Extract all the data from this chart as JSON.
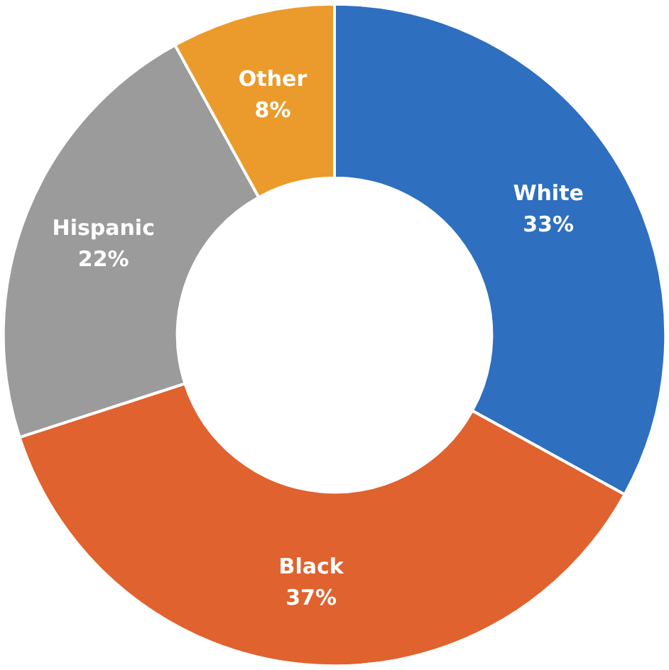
{
  "chart_data": {
    "type": "donut",
    "categories": [
      "White",
      "Black",
      "Hispanic",
      "Other"
    ],
    "values": [
      33,
      37,
      22,
      8
    ],
    "colors": [
      "#2e6fc0",
      "#e0622e",
      "#9b9b9b",
      "#eb9b2b"
    ],
    "value_labels": [
      "33%",
      "37%",
      "22%",
      "8%"
    ]
  }
}
